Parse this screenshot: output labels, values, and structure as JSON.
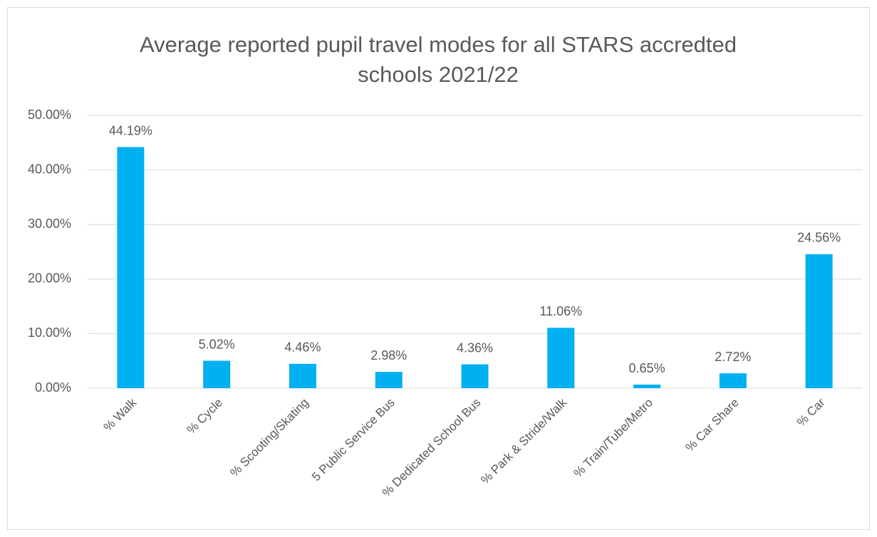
{
  "chart_data": {
    "type": "bar",
    "title": "Average reported pupil travel modes for all STARS accredted schools 2021/22",
    "categories": [
      "% Walk",
      "% Cycle",
      "% Scooting/Skating",
      "5 Public Service Bus",
      "% Dedicated School Bus",
      "% Park & Stride/Walk",
      "% Train/Tube/Metro",
      "% Car Share",
      "% Car"
    ],
    "values": [
      44.19,
      5.02,
      4.46,
      2.98,
      4.36,
      11.06,
      0.65,
      2.72,
      24.56
    ],
    "value_labels": [
      "44.19%",
      "5.02%",
      "4.46%",
      "2.98%",
      "4.36%",
      "11.06%",
      "0.65%",
      "2.72%",
      "24.56%"
    ],
    "color": "#00b0f0",
    "ylim": [
      0,
      50
    ],
    "yticks": [
      {
        "value": 0,
        "label": "0.00%"
      },
      {
        "value": 10,
        "label": "10.00%"
      },
      {
        "value": 20,
        "label": "20.00%"
      },
      {
        "value": 30,
        "label": "30.00%"
      },
      {
        "value": 40,
        "label": "40.00%"
      },
      {
        "value": 50,
        "label": "50.00%"
      }
    ],
    "grid": true
  }
}
